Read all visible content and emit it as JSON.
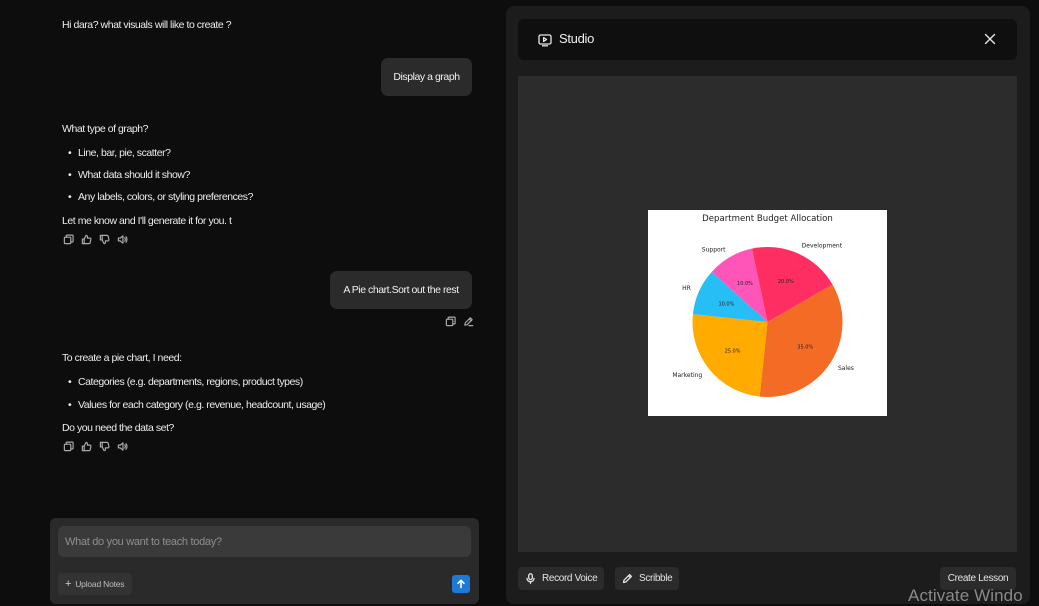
{
  "chat": {
    "assistant_greeting": "Hi dara? what visuals will like to create ?",
    "user_msg_1": "Display a graph",
    "assistant_msg_1": {
      "intro": "What type of graph?",
      "bullets": [
        "Line, bar, pie, scatter?",
        "What data should it show?",
        "Any labels, colors, or styling preferences?"
      ],
      "outro": "Let me know and I'll generate it for you. t"
    },
    "user_msg_2": "A Pie chart.Sort out the rest",
    "assistant_msg_2": {
      "intro": "To create a pie chart, I need:",
      "bullets": [
        "Categories (e.g. departments, regions, product types)",
        "Values for each category (e.g. revenue, headcount, usage)"
      ],
      "outro": "Do you need the data set?"
    },
    "action_icons": [
      "copy-icon",
      "thumbs-up-icon",
      "thumbs-down-icon",
      "speaker-icon"
    ],
    "user_action_icons": [
      "copy-icon",
      "edit-icon"
    ]
  },
  "composer": {
    "placeholder": "What do you want to teach today?",
    "upload_label": "Upload Notes",
    "send_icon": "arrow-up-icon"
  },
  "studio": {
    "title": "Studio",
    "record_label": "Record Voice",
    "scribble_label": "Scribble",
    "create_label": "Create Lesson"
  },
  "chart_data": {
    "type": "pie",
    "title": "Department Budget Allocation",
    "categories": [
      "Sales",
      "Marketing",
      "HR",
      "Support",
      "Development"
    ],
    "values": [
      35.0,
      25.0,
      10.0,
      10.0,
      20.0
    ],
    "value_labels": [
      "35.0%",
      "25.0%",
      "10.0%",
      "10.0%",
      "20.0%"
    ],
    "colors": [
      "#f46b25",
      "#ffab00",
      "#27bdf5",
      "#ff55b8",
      "#ff2e62"
    ],
    "start_angle_deg": -30,
    "direction": "clockwise"
  },
  "watermark": "Activate Windo"
}
